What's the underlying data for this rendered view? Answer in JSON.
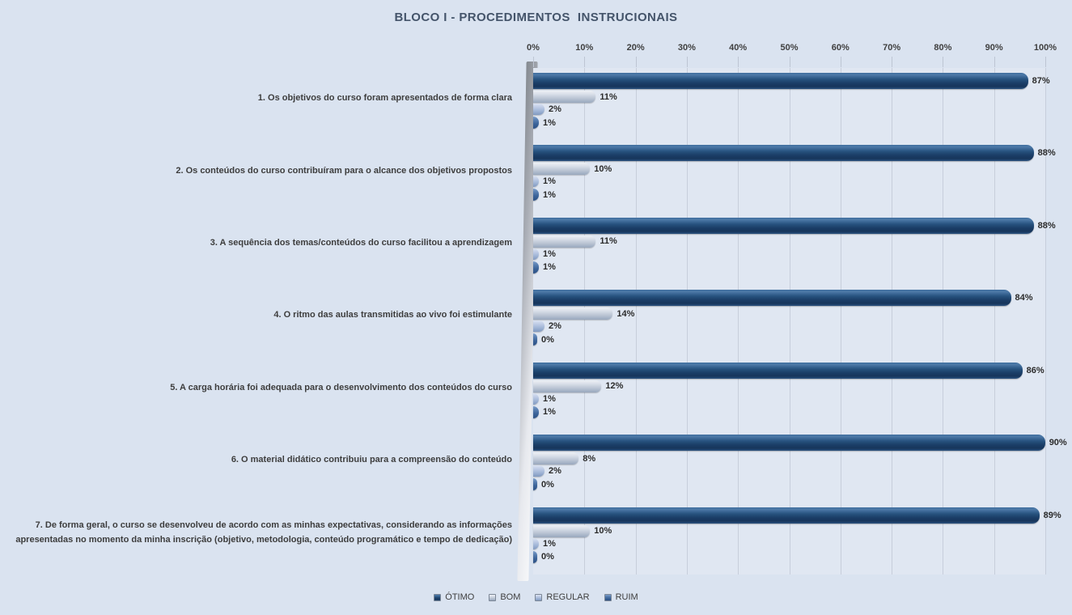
{
  "title": "BLOCO I - PROCEDIMENTOS  INSTRUCIONAIS",
  "chart_data": {
    "type": "bar",
    "orientation": "horizontal",
    "title": "BLOCO I - PROCEDIMENTOS  INSTRUCIONAIS",
    "categories": [
      "1. Os objetivos do curso foram apresentados de forma clara",
      "2. Os conteúdos do curso contribuíram para o alcance dos objetivos propostos",
      "3. A sequência dos temas/conteúdos do curso facilitou a aprendizagem",
      "4. O ritmo das aulas transmitidas ao vivo foi estimulante",
      "5. A carga horária foi adequada para o desenvolvimento dos conteúdos do curso",
      "6. O material didático contribuiu para a compreensão do conteúdo",
      "7. De forma geral, o curso se desenvolveu de acordo com as minhas expectativas, considerando as informações apresentadas no momento da minha inscrição (objetivo, metodologia, conteúdo programático e tempo de dedicação)"
    ],
    "series": [
      {
        "name": "ÓTIMO",
        "color": "#1F4E79",
        "values": [
          87,
          88,
          88,
          84,
          86,
          90,
          89
        ]
      },
      {
        "name": "BOM",
        "color": "#BFC9D9",
        "values": [
          11,
          10,
          11,
          14,
          12,
          8,
          10
        ]
      },
      {
        "name": "REGULAR",
        "color": "#9DB3D4",
        "values": [
          2,
          1,
          1,
          2,
          1,
          2,
          1
        ]
      },
      {
        "name": "RUIM",
        "color": "#3A6399",
        "values": [
          1,
          1,
          1,
          0,
          1,
          0,
          0
        ]
      }
    ],
    "value_label_suffix": "%",
    "x_axis": {
      "position": "top",
      "ticks": [
        "0%",
        "10%",
        "20%",
        "30%",
        "40%",
        "50%",
        "60%",
        "70%",
        "80%",
        "90%",
        "100%"
      ]
    },
    "xlim": [
      0,
      100
    ],
    "grid": true,
    "legend_position": "bottom",
    "background_color": "#DAE3F0",
    "plot_background_color": "#E0E7F2"
  }
}
